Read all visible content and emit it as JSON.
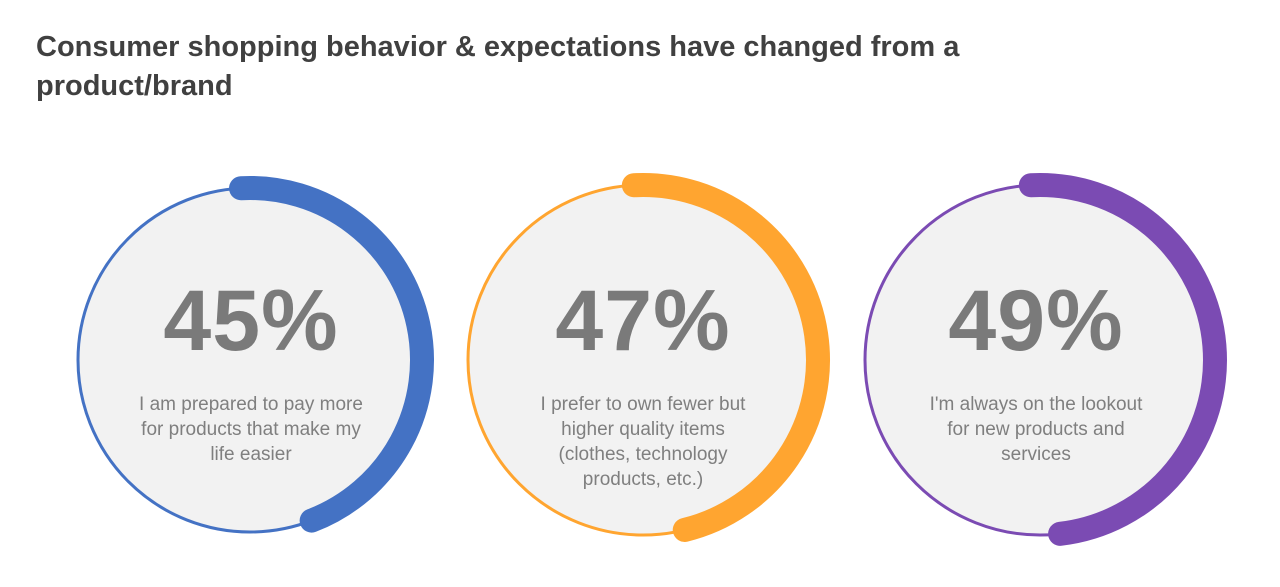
{
  "title": "Consumer shopping behavior & expectations have changed from a product/brand",
  "stats": [
    {
      "value": "45%",
      "percent": 45,
      "caption": "I am prepared to pay more for products that make my life easier",
      "color": "#4472C4"
    },
    {
      "value": "47%",
      "percent": 47,
      "caption": "I prefer to own fewer but higher quality items (clothes, technology products, etc.)",
      "color": "#FFA530"
    },
    {
      "value": "49%",
      "percent": 49,
      "caption": "I'm always on the lookout for new products and services",
      "color": "#7B4BB3"
    }
  ]
}
